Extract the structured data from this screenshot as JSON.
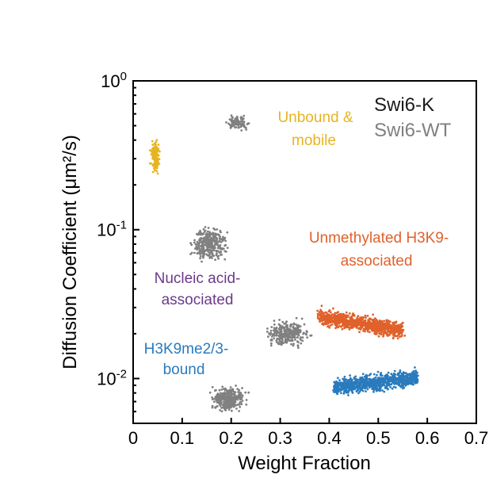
{
  "chart_data": {
    "type": "scatter",
    "title": "",
    "xlabel": "Weight Fraction",
    "ylabel": "Diffusion Coefficient (μm²/s)",
    "xlim": [
      0,
      0.7
    ],
    "ylim": [
      0.005,
      1
    ],
    "yscale": "log",
    "x_ticks": [
      "0",
      "0.1",
      "0.2",
      "0.3",
      "0.4",
      "0.5",
      "0.6",
      "0.7"
    ],
    "y_ticks": [
      {
        "base": "10",
        "exp": "0",
        "value": 1
      },
      {
        "base": "10",
        "exp": "-1",
        "value": 0.1
      },
      {
        "base": "10",
        "exp": "-2",
        "value": 0.01
      }
    ],
    "legend": [
      {
        "label": "Swi6-K",
        "color": "#1a1a1a"
      },
      {
        "label": "Swi6-WT",
        "color": "#808080"
      }
    ],
    "annotations": [
      {
        "lines": [
          "Unbound &",
          "mobile"
        ],
        "color": "#e6b422"
      },
      {
        "lines": [
          "Unmethylated H3K9-",
          "associated"
        ],
        "color": "#e0612b"
      },
      {
        "lines": [
          "Nucleic acid-",
          "associated"
        ],
        "color": "#6b3a8a"
      },
      {
        "lines": [
          "H3K9me2/3-",
          "bound"
        ],
        "color": "#2a7bbd"
      }
    ],
    "series": [
      {
        "name": "Swi6-K Unbound & mobile",
        "color": "#e6b422",
        "cloud": {
          "shape": "blob",
          "cx": 0.045,
          "cy": 0.31,
          "sx": 0.004,
          "sy_dec": 0.045,
          "n": 140
        }
      },
      {
        "name": "Swi6-WT Unbound & mobile",
        "color": "#808080",
        "cloud": {
          "shape": "blob",
          "cx": 0.215,
          "cy": 0.52,
          "sx": 0.01,
          "sy_dec": 0.02,
          "n": 90
        }
      },
      {
        "name": "Swi6-WT Nucleic acid-associated",
        "color": "#808080",
        "cloud": {
          "shape": "blob",
          "cx": 0.155,
          "cy": 0.08,
          "sx": 0.015,
          "sy_dec": 0.05,
          "n": 320
        }
      },
      {
        "name": "Swi6-K Unmethylated H3K9-associated",
        "color": "#e0612b",
        "cloud": {
          "shape": "band",
          "x0": 0.38,
          "x1": 0.55,
          "y0": 0.026,
          "y1": 0.021,
          "sy_dec": 0.025,
          "n": 900
        }
      },
      {
        "name": "Swi6-WT Unmethylated H3K9-associated",
        "color": "#808080",
        "cloud": {
          "shape": "blob",
          "cx": 0.315,
          "cy": 0.02,
          "sx": 0.018,
          "sy_dec": 0.035,
          "n": 320
        }
      },
      {
        "name": "Swi6-K H3K9me2/3-bound",
        "color": "#2a7bbd",
        "cloud": {
          "shape": "band",
          "x0": 0.41,
          "x1": 0.58,
          "y0": 0.0087,
          "y1": 0.0102,
          "sy_dec": 0.025,
          "n": 900
        }
      },
      {
        "name": "Swi6-WT H3K9me2/3-bound",
        "color": "#808080",
        "cloud": {
          "shape": "blob",
          "cx": 0.195,
          "cy": 0.0073,
          "sx": 0.015,
          "sy_dec": 0.035,
          "n": 320
        }
      }
    ]
  }
}
